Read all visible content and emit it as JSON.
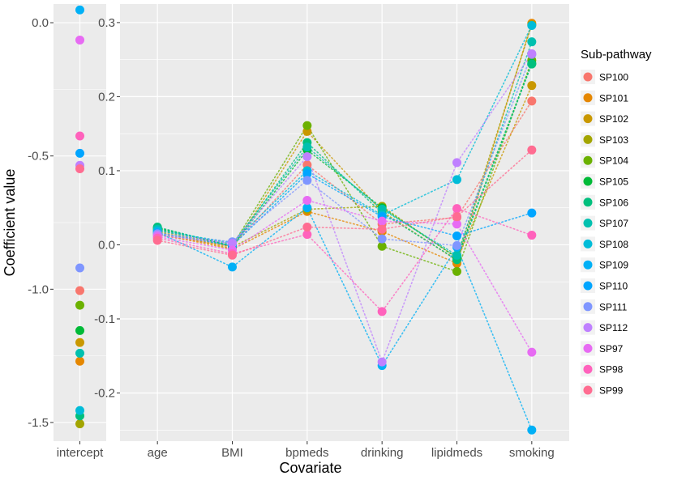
{
  "chart_data": {
    "type": "scatter",
    "xlabel": "Covariate",
    "ylabel": "Coefficient value",
    "legend_title": "Sub-pathway",
    "legend_position": "right",
    "grid": true,
    "connecting_lines": "dotted",
    "facets": [
      {
        "name": "intercept-panel",
        "categories": [
          "intercept"
        ],
        "ylim": [
          -1.57,
          0.07
        ],
        "yticks": [
          0.0,
          -0.5,
          -1.0,
          -1.5
        ],
        "ytick_labels": [
          "0.0",
          "-0.5",
          "-1.0",
          "-1.5"
        ]
      },
      {
        "name": "covariate-panel",
        "categories": [
          "age",
          "BMI",
          "bpmeds",
          "drinking",
          "lipidmeds",
          "smoking"
        ],
        "ylim": [
          -0.265,
          0.325
        ],
        "yticks": [
          0.3,
          0.2,
          0.1,
          0.0,
          -0.1,
          -0.2
        ],
        "ytick_labels": [
          "0.3",
          "0.2",
          "0.1",
          "0.0",
          "-0.1",
          "-0.2"
        ]
      }
    ],
    "series": [
      {
        "name": "SP100",
        "color": "#F8766D",
        "intercept": -1.005,
        "values": [
          0.013,
          -0.002,
          0.108,
          0.028,
          0.037,
          0.194
        ]
      },
      {
        "name": "SP101",
        "color": "#E58700",
        "intercept": -1.27,
        "values": [
          0.015,
          -0.006,
          0.045,
          0.018,
          -0.025,
          0.299
        ]
      },
      {
        "name": "SP102",
        "color": "#C99800",
        "intercept": -1.2,
        "values": [
          0.018,
          -0.005,
          0.153,
          0.045,
          -0.021,
          0.215
        ]
      },
      {
        "name": "SP103",
        "color": "#A3A500",
        "intercept": -1.505,
        "values": [
          0.02,
          -0.003,
          0.048,
          0.052,
          -0.018,
          0.297
        ]
      },
      {
        "name": "SP104",
        "color": "#6BB100",
        "intercept": -1.06,
        "values": [
          0.022,
          -0.001,
          0.161,
          -0.002,
          -0.036,
          0.249
        ]
      },
      {
        "name": "SP105",
        "color": "#00BA38",
        "intercept": -1.155,
        "values": [
          0.023,
          -0.002,
          0.128,
          0.05,
          -0.017,
          0.245
        ]
      },
      {
        "name": "SP106",
        "color": "#00BF7D",
        "intercept": -1.475,
        "values": [
          0.024,
          -0.002,
          0.138,
          0.043,
          -0.02,
          0.244
        ]
      },
      {
        "name": "SP107",
        "color": "#00C0AF",
        "intercept": -1.24,
        "values": [
          0.021,
          0.001,
          0.132,
          0.048,
          -0.014,
          0.274
        ]
      },
      {
        "name": "SP108",
        "color": "#00BCD8",
        "intercept": -1.455,
        "values": [
          0.019,
          0.003,
          0.1,
          0.04,
          0.088,
          0.296
        ]
      },
      {
        "name": "SP109",
        "color": "#00B0F6",
        "intercept": 0.048,
        "values": [
          0.017,
          -0.03,
          0.05,
          -0.163,
          -0.003,
          -0.25
        ]
      },
      {
        "name": "SP110",
        "color": "#00A5FF",
        "intercept": -0.49,
        "values": [
          0.016,
          -0.001,
          0.096,
          0.038,
          0.012,
          0.043
        ]
      },
      {
        "name": "SP111",
        "color": "#7F96FF",
        "intercept": -0.92,
        "values": [
          0.015,
          0.004,
          0.087,
          0.008,
          -0.001,
          0.257
        ]
      },
      {
        "name": "SP112",
        "color": "#BF80FF",
        "intercept": -0.535,
        "values": [
          0.013,
          0.002,
          0.119,
          -0.158,
          0.111,
          0.258
        ]
      },
      {
        "name": "SP97",
        "color": "#E76BF3",
        "intercept": -0.065,
        "values": [
          0.011,
          -0.007,
          0.06,
          0.032,
          0.028,
          -0.145
        ]
      },
      {
        "name": "SP98",
        "color": "#FF62BC",
        "intercept": -0.425,
        "values": [
          0.009,
          -0.012,
          0.014,
          -0.09,
          0.049,
          0.013
        ]
      },
      {
        "name": "SP99",
        "color": "#FF6C91",
        "intercept": -0.548,
        "values": [
          0.006,
          -0.014,
          0.024,
          0.021,
          0.038,
          0.128
        ]
      }
    ]
  }
}
